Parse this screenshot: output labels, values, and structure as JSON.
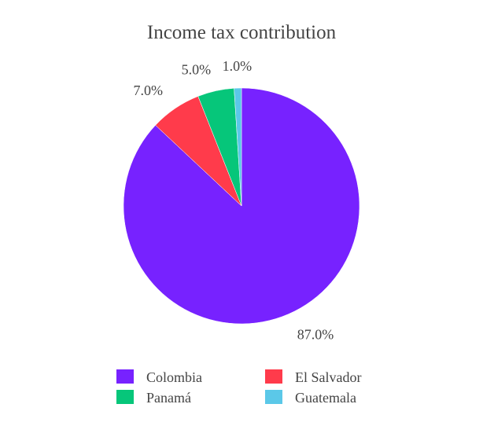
{
  "chart_data": {
    "type": "pie",
    "title": "Income tax contribution",
    "slices": [
      {
        "label": "Colombia",
        "value": 87.0,
        "display": "87.0%",
        "color": "#7722FF"
      },
      {
        "label": "El Salvador",
        "value": 7.0,
        "display": "7.0%",
        "color": "#FF3B4B"
      },
      {
        "label": "Panamá",
        "value": 5.0,
        "display": "5.0%",
        "color": "#06C67A"
      },
      {
        "label": "Guatemala",
        "value": 1.0,
        "display": "1.0%",
        "color": "#5BC8E8"
      }
    ],
    "legend": {
      "placement": "bottom",
      "columns": 2,
      "order": [
        "Colombia",
        "El Salvador",
        "Panamá",
        "Guatemala"
      ]
    },
    "direction": "clockwise",
    "start": "top"
  }
}
